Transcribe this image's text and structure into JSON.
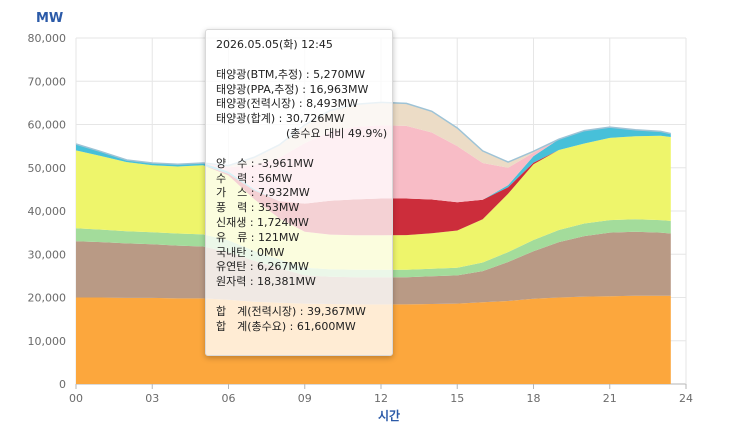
{
  "unit_label": "MW",
  "colors": {
    "nuclear": "#fca73d",
    "bituminous": "#b99a85",
    "oil": "#b99a85",
    "lng": "#eef56b",
    "anthracite": "#d8a0a0",
    "renewable_other": "#a3dc9b",
    "wind": "#80d48a",
    "hydro_pumped": "#47c0d9",
    "solar_market": "#cc2d3b",
    "solar_ppa": "#f8bcc6",
    "solar_btm": "#ecdcc6",
    "grid": "#e6e6e6",
    "axis_label": "#2b5aa8"
  },
  "tooltip": {
    "title": "2026.05.05(화) 12:45",
    "solar": [
      "태양광(BTM,추정) : 5,270MW",
      "태양광(PPA,추정) : 16,963MW",
      "태양광(전력시장) : 8,493MW",
      "태양광(합계) : 30,726MW"
    ],
    "solar_ratio": "(총수요 대비 49.9%)",
    "sources": [
      "양　수 : -3,961MW",
      "수　력 : 56MW",
      "가　스 : 7,932MW",
      "풍　력 : 353MW",
      "신재생 : 1,724MW",
      "유　류 : 121MW",
      "국내탄 : 0MW",
      "유연탄 : 6,267MW",
      "원자력 : 18,381MW"
    ],
    "totals": [
      "합　계(전력시장) : 39,367MW",
      "합　계(총수요) : 61,600MW"
    ]
  },
  "chart_data": {
    "type": "area",
    "stacked": true,
    "xlabel": "시간",
    "ylabel": "MW",
    "xlim": [
      0,
      24
    ],
    "ylim": [
      0,
      80000
    ],
    "x_ticks": [
      "00",
      "03",
      "06",
      "09",
      "12",
      "15",
      "18",
      "21",
      "24"
    ],
    "y_ticks": [
      "0",
      "10,000",
      "20,000",
      "30,000",
      "40,000",
      "50,000",
      "60,000",
      "70,000",
      "80,000"
    ],
    "grid": true,
    "x": [
      0,
      1,
      2,
      3,
      4,
      5,
      6,
      7,
      8,
      9,
      10,
      11,
      12,
      13,
      14,
      15,
      16,
      17,
      18,
      19,
      20,
      21,
      22,
      23,
      23.4
    ],
    "series": [
      {
        "key": "nuclear",
        "values": [
          20000,
          20000,
          19900,
          19900,
          19800,
          19800,
          19500,
          19000,
          18800,
          18600,
          18500,
          18400,
          18400,
          18400,
          18500,
          18600,
          18900,
          19200,
          19700,
          20000,
          20200,
          20300,
          20400,
          20400,
          20400
        ]
      },
      {
        "key": "bituminous",
        "values": [
          13000,
          12800,
          12600,
          12400,
          12200,
          12000,
          11000,
          9500,
          8000,
          6500,
          6300,
          6300,
          6300,
          6300,
          6400,
          6500,
          7200,
          9000,
          11000,
          12800,
          14000,
          14700,
          14800,
          14600,
          14400
        ]
      },
      {
        "key": "renewable_other",
        "values": [
          3000,
          2900,
          2800,
          2800,
          2800,
          2800,
          2700,
          2300,
          2000,
          1800,
          1750,
          1730,
          1730,
          1730,
          1750,
          1800,
          2000,
          2300,
          2600,
          2800,
          2900,
          2900,
          2900,
          2900,
          2900
        ]
      },
      {
        "key": "lng",
        "values": [
          18000,
          17000,
          16000,
          15500,
          15500,
          16000,
          15000,
          12000,
          9500,
          8300,
          8000,
          7950,
          7950,
          8000,
          8200,
          8600,
          10000,
          13500,
          17500,
          18500,
          18500,
          19000,
          19200,
          19500,
          19400
        ]
      },
      {
        "key": "solar_market",
        "values": [
          0,
          0,
          0,
          0,
          0,
          0,
          400,
          2000,
          4000,
          6500,
          7800,
          8300,
          8500,
          8450,
          7800,
          6500,
          4500,
          1500,
          400,
          0,
          0,
          0,
          0,
          0,
          0
        ]
      },
      {
        "key": "hydro_pumped",
        "values": [
          1500,
          1000,
          500,
          500,
          500,
          500,
          500,
          300,
          0,
          0,
          0,
          0,
          0,
          0,
          0,
          0,
          0,
          500,
          1500,
          2500,
          3000,
          2500,
          1500,
          1000,
          800
        ]
      },
      {
        "key": "solar_ppa",
        "values": [
          0,
          0,
          0,
          0,
          0,
          0,
          1000,
          5500,
          10000,
          14000,
          16000,
          16800,
          16960,
          16800,
          15500,
          13000,
          8500,
          4000,
          800,
          0,
          0,
          0,
          0,
          0,
          0
        ]
      },
      {
        "key": "solar_btm",
        "values": [
          0,
          0,
          0,
          0,
          0,
          0,
          400,
          1800,
          3000,
          4200,
          4900,
          5200,
          5270,
          5200,
          4900,
          4200,
          2800,
          1300,
          300,
          0,
          0,
          0,
          0,
          0,
          0
        ]
      }
    ]
  }
}
